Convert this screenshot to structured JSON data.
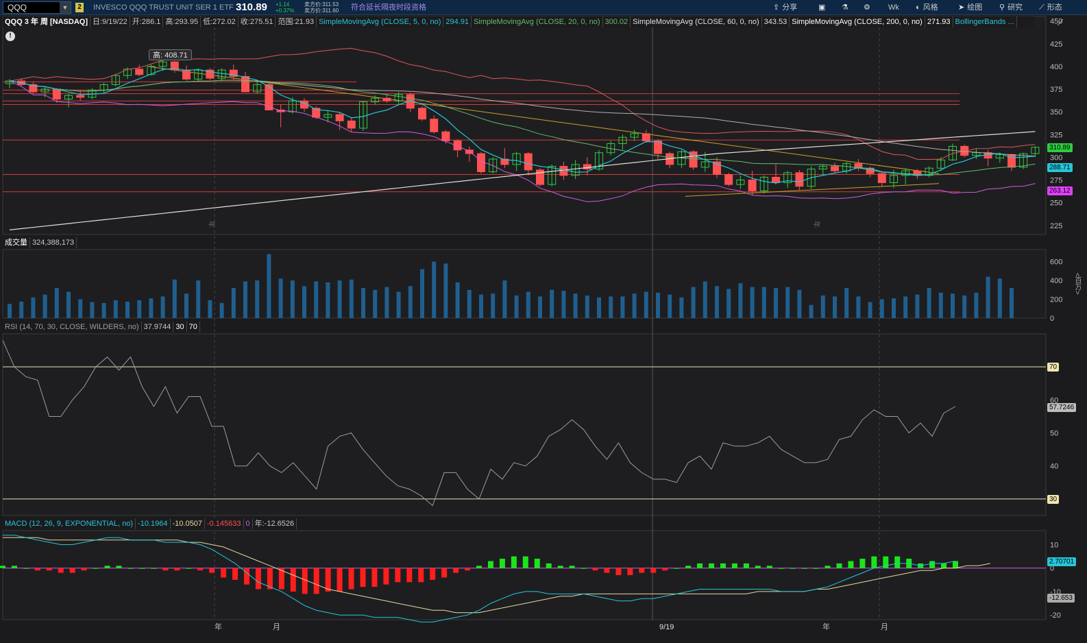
{
  "topbar": {
    "symbol": "QQQ",
    "link_number": "2",
    "description": "INVESCO QQQ TRUST UNIT SER 1 ETF",
    "last_price": "310.89",
    "change": "+1.14",
    "change_pct": "+0.37%",
    "bid": "卖方价:311.53",
    "ask": "卖方价:311.60",
    "extended_hours_link": "符合延长隔夜时段资格",
    "buttons": [
      {
        "label": "分享",
        "icon": "share-icon"
      },
      {
        "label": "",
        "icon": "screenshot-icon"
      },
      {
        "label": "",
        "icon": "flask-icon"
      },
      {
        "label": "",
        "icon": "gear-icon"
      },
      {
        "label": "Wk",
        "icon": ""
      },
      {
        "label": "风格",
        "icon": "style-icon"
      },
      {
        "label": "绘图",
        "icon": "cursor-icon"
      },
      {
        "label": "研究",
        "icon": "study-icon"
      },
      {
        "label": "形态",
        "icon": "pattern-icon"
      }
    ]
  },
  "price_header": {
    "title": "QQQ 3 年 周 [NASDAQ]",
    "date": "日:9/19/22",
    "open": "开:286.1",
    "high": "高:293.95",
    "low": "低:272.02",
    "close": "收:275.51",
    "range": "范围:21.93",
    "sma5_label": "SimpleMovingAvg (CLOSE, 5, 0, no)",
    "sma5_value": "294.91",
    "sma20_label": "SimpleMovingAvg (CLOSE, 20, 0, no)",
    "sma20_value": "300.02",
    "sma60_label": "SimpleMovingAvg (CLOSE, 60, 0, no)",
    "sma60_value": "343.53",
    "sma200_label": "SimpleMovingAvg (CLOSE, 200, 0, no)",
    "sma200_value": "271.93",
    "bb_label": "BollingerBands ..."
  },
  "high_callout": "高: 408.71",
  "price_axis": {
    "ticks": [
      "450",
      "425",
      "400",
      "375",
      "350",
      "325",
      "300",
      "275",
      "250",
      "225"
    ],
    "tags": [
      {
        "value": "310.89",
        "color": "#2ecc40"
      },
      {
        "value": "288.71",
        "color": "#26c6da"
      },
      {
        "value": "263.12",
        "color": "#e040fb"
      }
    ]
  },
  "volume_header": {
    "label": "成交量",
    "value": "324,388,173"
  },
  "volume_axis": {
    "ticks": [
      "600",
      "400",
      "200",
      "0"
    ],
    "unit": "<百万>"
  },
  "rsi_header": {
    "label": "RSI (14, 70, 30, CLOSE, WILDERS, no)",
    "value": "37.9744",
    "low": "30",
    "high": "70"
  },
  "rsi_axis": {
    "ticks": [
      "60",
      "50",
      "40"
    ],
    "levels": [
      "70",
      "30"
    ],
    "current": "57.7246"
  },
  "macd_header": {
    "label": "MACD (12, 26, 9, EXPONENTIAL, no)",
    "value": "-10.1964",
    "avg": "-10.0507",
    "diff": "-0.145633",
    "zero": "0",
    "year": "年:-12.6526"
  },
  "macd_axis": {
    "ticks": [
      "10",
      "0",
      "-10",
      "-20"
    ],
    "tags": [
      {
        "value": "2.70701",
        "color": "#26c6da"
      },
      {
        "value": "-12.653",
        "color": "#aaaaaa"
      }
    ]
  },
  "time_axis": {
    "labels": [
      "年",
      "月",
      "9/19",
      "年",
      "月"
    ]
  },
  "period_markers": [
    "年",
    "年"
  ],
  "colors": {
    "up": "#2ecc40",
    "down": "#ff5252",
    "sma5": "#26c6da",
    "sma20": "#66bb6a",
    "sma60": "#b0b0b0",
    "sma200": "#e0e0e0",
    "bb_upper": "#e35757",
    "bb_lower": "#d05ce3",
    "trend": "#c9a227",
    "volume": "#1f5f8f",
    "rsi": "#9e9e9e",
    "macd": "#26c6da",
    "macd_avg": "#e8d8a0",
    "hist_up": "#19e619",
    "hist_down": "#ff1e1e"
  },
  "chart_data": {
    "type": "candlestick",
    "title": "QQQ 3 年 周 [NASDAQ]",
    "candles_ohlc": [
      [
        381,
        386,
        376,
        384
      ],
      [
        384,
        387,
        378,
        380
      ],
      [
        380,
        383,
        370,
        372
      ],
      [
        372,
        378,
        366,
        375
      ],
      [
        375,
        376,
        360,
        364
      ],
      [
        364,
        370,
        355,
        368
      ],
      [
        368,
        374,
        362,
        366
      ],
      [
        366,
        376,
        364,
        374
      ],
      [
        374,
        382,
        371,
        380
      ],
      [
        380,
        392,
        378,
        390
      ],
      [
        390,
        399,
        386,
        397
      ],
      [
        397,
        402,
        389,
        391
      ],
      [
        391,
        402,
        390,
        400
      ],
      [
        400,
        409,
        395,
        405
      ],
      [
        405,
        406,
        393,
        396
      ],
      [
        396,
        401,
        384,
        386
      ],
      [
        386,
        398,
        383,
        396
      ],
      [
        396,
        398,
        385,
        387
      ],
      [
        387,
        398,
        384,
        396
      ],
      [
        396,
        402,
        385,
        389
      ],
      [
        389,
        394,
        373,
        372
      ],
      [
        372,
        383,
        370,
        380
      ],
      [
        380,
        382,
        360,
        352
      ],
      [
        352,
        358,
        333,
        350
      ],
      [
        350,
        366,
        348,
        362
      ],
      [
        362,
        365,
        350,
        354
      ],
      [
        354,
        356,
        342,
        344
      ],
      [
        344,
        352,
        338,
        347
      ],
      [
        347,
        350,
        330,
        340
      ],
      [
        340,
        344,
        328,
        332
      ],
      [
        332,
        362,
        329,
        361
      ],
      [
        361,
        368,
        358,
        365
      ],
      [
        365,
        370,
        360,
        362
      ],
      [
        362,
        372,
        357,
        369
      ],
      [
        369,
        371,
        350,
        354
      ],
      [
        354,
        356,
        340,
        342
      ],
      [
        342,
        346,
        326,
        328
      ],
      [
        328,
        330,
        315,
        318
      ],
      [
        318,
        320,
        300,
        308
      ],
      [
        308,
        312,
        295,
        304
      ],
      [
        304,
        306,
        282,
        284
      ],
      [
        284,
        300,
        282,
        298
      ],
      [
        298,
        310,
        288,
        292
      ],
      [
        292,
        306,
        285,
        304
      ],
      [
        304,
        306,
        280,
        286
      ],
      [
        286,
        288,
        268,
        270
      ],
      [
        270,
        292,
        268,
        290
      ],
      [
        290,
        295,
        275,
        280
      ],
      [
        280,
        297,
        276,
        292
      ],
      [
        292,
        300,
        280,
        287
      ],
      [
        287,
        308,
        285,
        305
      ],
      [
        305,
        318,
        302,
        315
      ],
      [
        315,
        325,
        308,
        322
      ],
      [
        322,
        330,
        318,
        326
      ],
      [
        326,
        330,
        316,
        318
      ],
      [
        318,
        320,
        298,
        304
      ],
      [
        304,
        306,
        288,
        292
      ],
      [
        292,
        308,
        288,
        306
      ],
      [
        306,
        308,
        286,
        289
      ],
      [
        289,
        306,
        284,
        295
      ],
      [
        295,
        300,
        277,
        281
      ],
      [
        281,
        283,
        268,
        270
      ],
      [
        270,
        280,
        265,
        275
      ],
      [
        275,
        285,
        258,
        263
      ],
      [
        263,
        280,
        260,
        278
      ],
      [
        278,
        292,
        270,
        272
      ],
      [
        272,
        285,
        266,
        283
      ],
      [
        283,
        286,
        264,
        268
      ],
      [
        268,
        290,
        265,
        287
      ],
      [
        287,
        292,
        280,
        290
      ],
      [
        290,
        294,
        282,
        285
      ],
      [
        285,
        295,
        282,
        293
      ],
      [
        293,
        298,
        285,
        288
      ],
      [
        288,
        290,
        278,
        282
      ],
      [
        282,
        284,
        268,
        272
      ],
      [
        272,
        286,
        266,
        280
      ],
      [
        280,
        288,
        270,
        285
      ],
      [
        285,
        287,
        276,
        280
      ],
      [
        280,
        290,
        278,
        288
      ],
      [
        288,
        300,
        285,
        297
      ],
      [
        297,
        315,
        296,
        312
      ],
      [
        312,
        314,
        300,
        302
      ],
      [
        302,
        310,
        298,
        305
      ],
      [
        305,
        308,
        290,
        299
      ],
      [
        299,
        305,
        294,
        303
      ],
      [
        303,
        304,
        285,
        289
      ],
      [
        289,
        305,
        287,
        304
      ],
      [
        304,
        312,
        300,
        311
      ]
    ],
    "volume_millions": [
      150,
      175,
      220,
      250,
      320,
      280,
      200,
      170,
      160,
      190,
      175,
      190,
      210,
      230,
      410,
      260,
      400,
      190,
      160,
      320,
      390,
      400,
      680,
      420,
      400,
      340,
      390,
      380,
      400,
      410,
      320,
      300,
      330,
      280,
      340,
      520,
      600,
      580,
      380,
      300,
      250,
      260,
      400,
      240,
      280,
      230,
      300,
      290,
      260,
      240,
      220,
      230,
      230,
      260,
      280,
      270,
      250,
      220,
      330,
      390,
      340,
      310,
      370,
      330,
      330,
      320,
      330,
      300,
      140,
      240,
      230,
      320,
      230,
      170,
      200,
      210,
      230,
      250,
      320,
      270,
      260,
      240,
      270,
      440,
      420,
      320
    ],
    "rsi": [
      78,
      70,
      67,
      66,
      55,
      55,
      60,
      64,
      70,
      73,
      69,
      73,
      64,
      58,
      64,
      56,
      61,
      61,
      52,
      52,
      40,
      40,
      44,
      40,
      38,
      41,
      37,
      33,
      46,
      49,
      50,
      45,
      41,
      37,
      34,
      33,
      31,
      28,
      38,
      38,
      33,
      30,
      39,
      36,
      41,
      40,
      43,
      49,
      51,
      54,
      51,
      46,
      42,
      47,
      41,
      38,
      36,
      36,
      35,
      41,
      43,
      39,
      47,
      46,
      46,
      47,
      49,
      45,
      43,
      41,
      41,
      42,
      48,
      49,
      54,
      57,
      55,
      55,
      50,
      53,
      49,
      56,
      58
    ],
    "macd": [
      14,
      14,
      13,
      12,
      11,
      10,
      10,
      11,
      12,
      13,
      13,
      12,
      12,
      12,
      11,
      11,
      11,
      10,
      8,
      5,
      2,
      -2,
      -6,
      -8,
      -10,
      -13,
      -16,
      -18,
      -19,
      -20,
      -20,
      -20,
      -21,
      -21,
      -21,
      -22,
      -23,
      -23,
      -22,
      -21,
      -20,
      -18,
      -15,
      -13,
      -11,
      -10,
      -10,
      -11,
      -11,
      -11,
      -11,
      -12,
      -13,
      -14,
      -14,
      -13,
      -13,
      -12,
      -11,
      -10,
      -9,
      -9,
      -9,
      -9,
      -9,
      -9,
      -9,
      -10,
      -10,
      -10,
      -9,
      -8,
      -6,
      -4,
      -2,
      0,
      1,
      2,
      2,
      1,
      2,
      2,
      3
    ],
    "macd_avg": [
      13,
      13,
      13,
      13,
      12,
      12,
      12,
      12,
      12,
      12,
      12,
      12,
      12,
      12,
      12,
      12,
      11,
      11,
      10,
      9,
      7,
      5,
      3,
      1,
      -1,
      -3,
      -5,
      -7,
      -9,
      -10,
      -11,
      -12,
      -13,
      -14,
      -15,
      -16,
      -17,
      -18,
      -18,
      -19,
      -19,
      -19,
      -18,
      -17,
      -16,
      -15,
      -14,
      -13,
      -12,
      -12,
      -11,
      -11,
      -11,
      -11,
      -11,
      -11,
      -11,
      -11,
      -11,
      -11,
      -11,
      -11,
      -11,
      -11,
      -11,
      -10,
      -10,
      -10,
      -10,
      -10,
      -9,
      -9,
      -8,
      -7,
      -6,
      -5,
      -4,
      -3,
      -2,
      -1,
      -1,
      0,
      0,
      1,
      1,
      2
    ],
    "horizontal_levels": [
      383,
      374,
      370,
      362,
      358,
      319,
      281,
      262
    ],
    "ylim": [
      215,
      455
    ],
    "rsi_levels": [
      70,
      30
    ],
    "macd_ylim": [
      -22,
      16
    ],
    "grid": false
  }
}
